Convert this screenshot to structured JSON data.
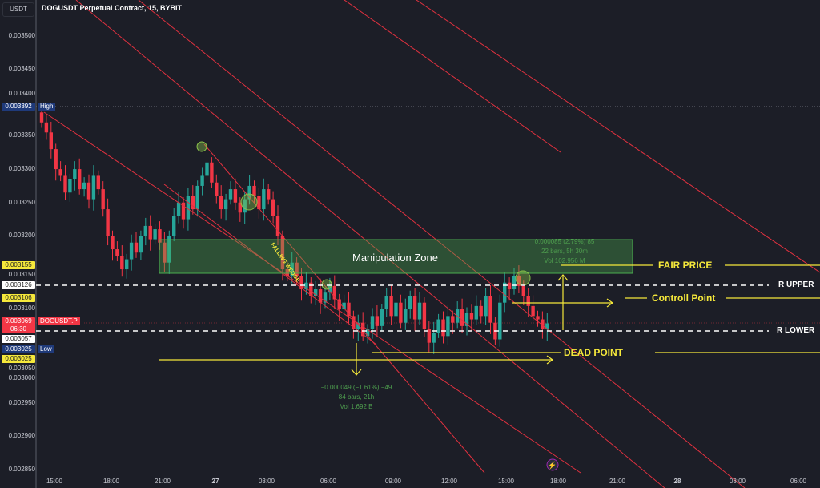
{
  "header": {
    "currency": "USDT",
    "title": "DOGUSDT Perpetual Contract, 15, BYBIT"
  },
  "price_axis": [
    "0.003500",
    "0.003450",
    "0.003400",
    "0.003350",
    "0.003300",
    "0.003250",
    "0.003200",
    "0.003150",
    "0.003100",
    "0.003050",
    "0.003000",
    "0.002950",
    "0.002900",
    "0.002850"
  ],
  "price_tags": {
    "high": "0.003392",
    "high_label": "High",
    "p1": "0.003155",
    "p2": "0.003126",
    "p3": "0.003106",
    "last": "0.003069",
    "countdown": "06:30",
    "symbol": "DOGUSDT.P",
    "p4": "0.003057",
    "low": "0.003025",
    "low_label": "Low",
    "p5": "0.003025"
  },
  "time_axis": [
    "15:00",
    "18:00",
    "21:00",
    "27",
    "03:00",
    "06:00",
    "09:00",
    "12:00",
    "15:00",
    "18:00",
    "21:00",
    "28",
    "03:00",
    "06:00"
  ],
  "annotations": {
    "zone": "Manipulation Zone",
    "wedge": "FALLING WEDGE",
    "fair": "FAIR PRICE",
    "rupper": "R UPPER",
    "control": "Controll Point",
    "rlower": "R LOWER",
    "dead": "DEAD POINT"
  },
  "measure_up": {
    "l1": "0.000085 (2.79%) 85",
    "l2": "22 bars, 5h 30m",
    "l3": "Vol 102.956 M"
  },
  "measure_down": {
    "l1": "−0.000049 (−1.61%) −49",
    "l2": "84 bars, 21h",
    "l3": "Vol 1.692 B"
  },
  "colors": {
    "up": "#26a69a",
    "down": "#f23645",
    "annotation": "#f5e83b",
    "zone": "#4caf50"
  },
  "chart_data": {
    "type": "candlestick",
    "interval_min": 15,
    "start": "14:30",
    "ylim": [
      0.00285,
      0.00352
    ],
    "closes": [
      0.00337,
      0.003355,
      0.00333,
      0.0033,
      0.00329,
      0.003265,
      0.003285,
      0.0033,
      0.00327,
      0.00328,
      0.003255,
      0.00329,
      0.00327,
      0.00324,
      0.0032,
      0.00318,
      0.00317,
      0.00315,
      0.003165,
      0.00319,
      0.003175,
      0.0032,
      0.003215,
      0.003195,
      0.00321,
      0.00319,
      0.00316,
      0.0032,
      0.00323,
      0.00325,
      0.003225,
      0.00326,
      0.00324,
      0.003275,
      0.00329,
      0.00331,
      0.00328,
      0.00326,
      0.00324,
      0.003255,
      0.00327,
      0.00325,
      0.003235,
      0.003255,
      0.003275,
      0.00326,
      0.00324,
      0.00327,
      0.003255,
      0.00323,
      0.0032,
      0.00315,
      0.00314,
      0.00316,
      0.00314,
      0.00312,
      0.00313,
      0.00311,
      0.00312,
      0.0031,
      0.003115,
      0.003125,
      0.003105,
      0.00309,
      0.0031,
      0.00308,
      0.00306,
      0.00307,
      0.00305,
      0.00306,
      0.00308,
      0.003065,
      0.00309,
      0.00311,
      0.00308,
      0.0031,
      0.00307,
      0.00309,
      0.00311,
      0.003075,
      0.0031,
      0.00306,
      0.00304,
      0.003055,
      0.003075,
      0.00305,
      0.00308,
      0.00307,
      0.00309,
      0.003065,
      0.003085,
      0.003075,
      0.003095,
      0.00308,
      0.00311,
      0.00307,
      0.003045,
      0.0031,
      0.00313,
      0.00312,
      0.00314,
      0.003125,
      0.00311,
      0.003095,
      0.00308,
      0.003075,
      0.00306,
      0.003069
    ]
  }
}
